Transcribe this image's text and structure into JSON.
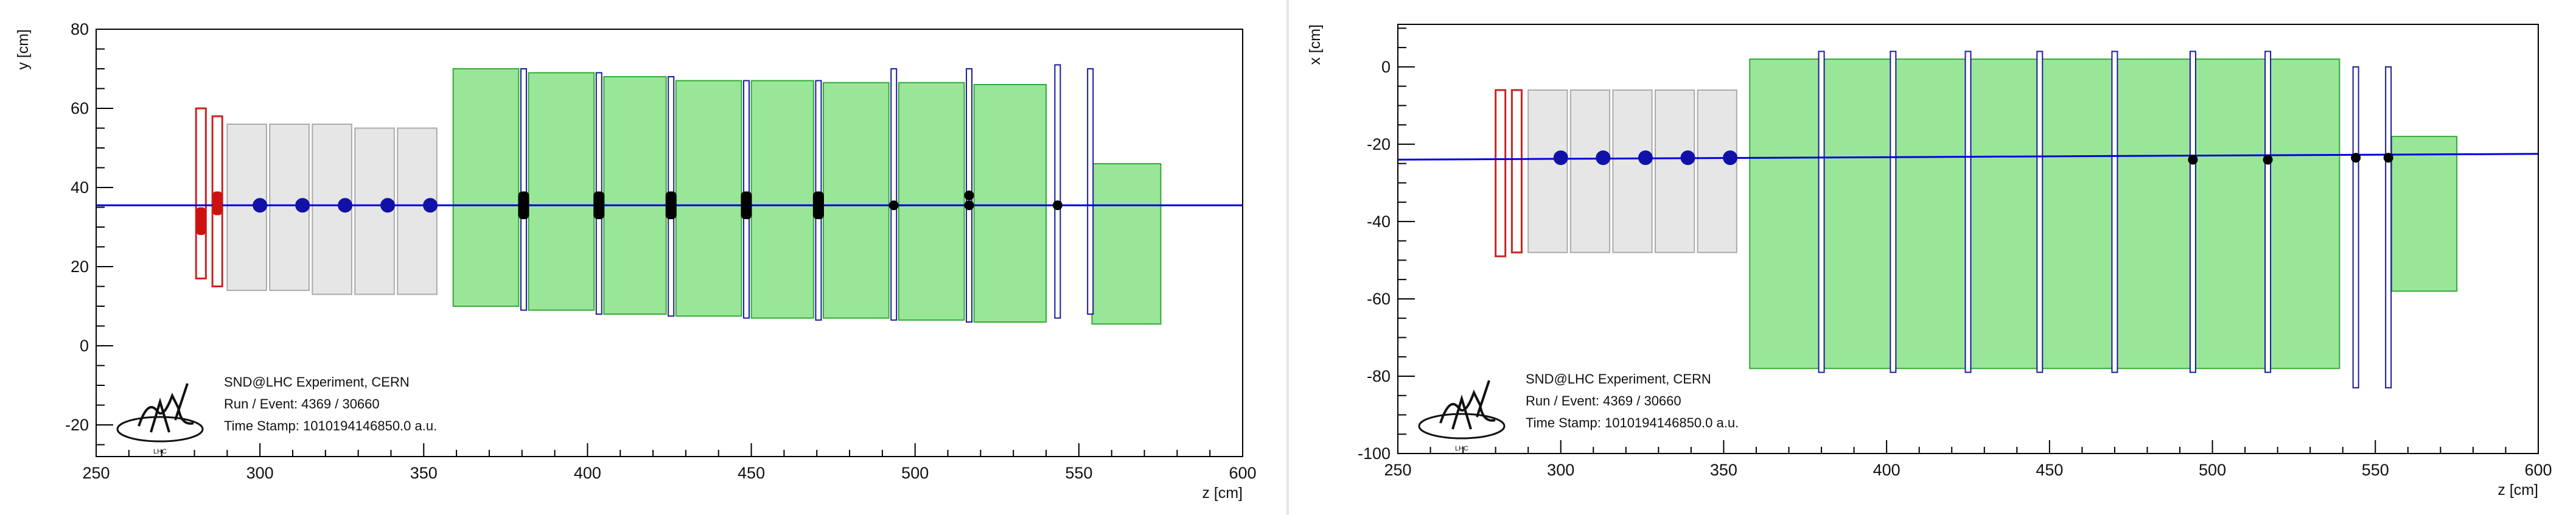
{
  "chart_data": [
    {
      "type": "scatter",
      "panel": "left",
      "xlabel": "z [cm]",
      "ylabel": "y [cm]",
      "xlim": [
        250,
        600
      ],
      "ylim": [
        -28,
        80
      ],
      "x_ticks": [
        250,
        300,
        350,
        400,
        450,
        500,
        550,
        600
      ],
      "y_ticks": [
        -20,
        0,
        20,
        40,
        60,
        80
      ],
      "grid": false,
      "legend": "none",
      "track": {
        "z": [
          250,
          600
        ],
        "coord": [
          35.5,
          35.5
        ],
        "color": "#0000dd"
      },
      "red_frames": [
        {
          "z0": 280.5,
          "z1": 283.5,
          "c0": 17,
          "c1": 60
        },
        {
          "z0": 285.5,
          "z1": 288.5,
          "c0": 15,
          "c1": 58
        }
      ],
      "grey_blocks": [
        {
          "z0": 290,
          "z1": 302,
          "c0": 14,
          "c1": 56
        },
        {
          "z0": 303,
          "z1": 315,
          "c0": 14,
          "c1": 56
        },
        {
          "z0": 316,
          "z1": 328,
          "c0": 13,
          "c1": 56
        },
        {
          "z0": 329,
          "z1": 341,
          "c0": 13,
          "c1": 55
        },
        {
          "z0": 342,
          "z1": 354,
          "c0": 13,
          "c1": 55
        }
      ],
      "green_blocks": [
        {
          "z0": 359,
          "z1": 379,
          "c0": 10,
          "c1": 70
        },
        {
          "z0": 382,
          "z1": 402,
          "c0": 9,
          "c1": 69
        },
        {
          "z0": 405,
          "z1": 424,
          "c0": 8,
          "c1": 68
        },
        {
          "z0": 427,
          "z1": 447,
          "c0": 7.5,
          "c1": 67
        },
        {
          "z0": 450,
          "z1": 469,
          "c0": 7,
          "c1": 67
        },
        {
          "z0": 472,
          "z1": 492,
          "c0": 7,
          "c1": 66.5
        },
        {
          "z0": 495,
          "z1": 515,
          "c0": 6.5,
          "c1": 66.5
        },
        {
          "z0": 518,
          "z1": 540,
          "c0": 6,
          "c1": 66
        },
        {
          "z0": 554,
          "z1": 575,
          "c0": 5.5,
          "c1": 46
        }
      ],
      "blue_planes": [
        {
          "z": 380.5,
          "c0": 9,
          "c1": 70
        },
        {
          "z": 403.5,
          "c0": 8,
          "c1": 69
        },
        {
          "z": 425.5,
          "c0": 7.5,
          "c1": 68
        },
        {
          "z": 448.5,
          "c0": 7,
          "c1": 67
        },
        {
          "z": 470.5,
          "c0": 6.5,
          "c1": 67
        },
        {
          "z": 493.5,
          "c0": 6.5,
          "c1": 70
        },
        {
          "z": 516.5,
          "c0": 6,
          "c1": 70
        },
        {
          "z": 543.5,
          "c0": 7,
          "c1": 71
        },
        {
          "z": 553.5,
          "c0": 8,
          "c1": 70
        }
      ],
      "hits_blue": [
        {
          "z": 300,
          "coord": 35.5
        },
        {
          "z": 313,
          "coord": 35.5
        },
        {
          "z": 326,
          "coord": 35.5
        },
        {
          "z": 339,
          "coord": 35.5
        },
        {
          "z": 352,
          "coord": 35.5
        }
      ],
      "hits_black_bar": [
        {
          "z": 380.5,
          "c0": 32,
          "c1": 39
        },
        {
          "z": 403.5,
          "c0": 32,
          "c1": 39
        },
        {
          "z": 425.5,
          "c0": 32,
          "c1": 39
        },
        {
          "z": 448.5,
          "c0": 32,
          "c1": 39
        },
        {
          "z": 470.5,
          "c0": 32,
          "c1": 39
        }
      ],
      "hits_black_dot": [
        {
          "z": 493.5,
          "coord": 35.5
        },
        {
          "z": 516.5,
          "coord": 38
        },
        {
          "z": 516.5,
          "coord": 35.5
        },
        {
          "z": 543.5,
          "coord": 35.5
        }
      ],
      "hits_red_bar": [
        {
          "z": 282,
          "c0": 28,
          "c1": 35
        },
        {
          "z": 287,
          "c0": 33,
          "c1": 39
        }
      ]
    },
    {
      "type": "scatter",
      "panel": "right",
      "xlabel": "z [cm]",
      "ylabel": "x [cm]",
      "xlim": [
        250,
        600
      ],
      "ylim": [
        -100,
        11
      ],
      "x_ticks": [
        250,
        300,
        350,
        400,
        450,
        500,
        550,
        600
      ],
      "y_ticks": [
        -100,
        -80,
        -60,
        -40,
        -20,
        0
      ],
      "grid": false,
      "legend": "none",
      "track": {
        "z": [
          250,
          600
        ],
        "coord": [
          -24,
          -22.5
        ],
        "color": "#0000dd"
      },
      "red_frames": [
        {
          "z0": 280,
          "z1": 283,
          "c0": -49,
          "c1": -6
        },
        {
          "z0": 285,
          "z1": 288,
          "c0": -48,
          "c1": -6
        }
      ],
      "grey_blocks": [
        {
          "z0": 290,
          "z1": 302,
          "c0": -48,
          "c1": -6
        },
        {
          "z0": 303,
          "z1": 315,
          "c0": -48,
          "c1": -6
        },
        {
          "z0": 316,
          "z1": 328,
          "c0": -48,
          "c1": -6
        },
        {
          "z0": 329,
          "z1": 341,
          "c0": -48,
          "c1": -6
        },
        {
          "z0": 342,
          "z1": 354,
          "c0": -48,
          "c1": -6
        }
      ],
      "green_blocks": [
        {
          "z0": 358,
          "z1": 539,
          "c0": -78,
          "c1": 2
        }
      ],
      "blue_planes": [
        {
          "z": 380,
          "c0": -79,
          "c1": 4
        },
        {
          "z": 402,
          "c0": -79,
          "c1": 4
        },
        {
          "z": 425,
          "c0": -79,
          "c1": 4
        },
        {
          "z": 447,
          "c0": -79,
          "c1": 4
        },
        {
          "z": 470,
          "c0": -79,
          "c1": 4
        },
        {
          "z": 494,
          "c0": -79,
          "c1": 4
        },
        {
          "z": 517,
          "c0": -79,
          "c1": 4
        },
        {
          "z": 544,
          "c0": -83,
          "c1": 0
        },
        {
          "z": 554,
          "c0": -83,
          "c1": 0
        }
      ],
      "green_small": {
        "z0": 555,
        "z1": 575,
        "c0": -58,
        "c1": -18
      },
      "hits_blue": [
        {
          "z": 300,
          "coord": -23.5
        },
        {
          "z": 313,
          "coord": -23.5
        },
        {
          "z": 326,
          "coord": -23.5
        },
        {
          "z": 339,
          "coord": -23.5
        },
        {
          "z": 352,
          "coord": -23.5
        }
      ],
      "hits_black_dot": [
        {
          "z": 494,
          "coord": -24
        },
        {
          "z": 517,
          "coord": -24
        },
        {
          "z": 544,
          "coord": -23.5
        },
        {
          "z": 554,
          "coord": -23.5
        }
      ]
    }
  ],
  "info": {
    "experiment": "SND@LHC Experiment, CERN",
    "run_event": "Run / Event: 4369 / 30660",
    "timestamp": "Time Stamp: 1010194146850.0 a.u.",
    "logo_text": "LHC"
  }
}
